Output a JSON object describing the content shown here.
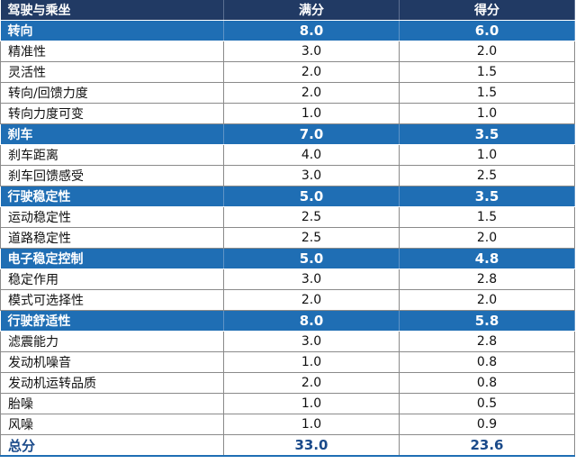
{
  "header": {
    "category": "驾驶与乘坐",
    "full_score": "满分",
    "score": "得分"
  },
  "sections": [
    {
      "name": "转向",
      "full": "8.0",
      "score": "6.0",
      "items": [
        {
          "name": "精准性",
          "full": "3.0",
          "score": "2.0"
        },
        {
          "name": "灵活性",
          "full": "2.0",
          "score": "1.5"
        },
        {
          "name": "转向/回馈力度",
          "full": "2.0",
          "score": "1.5"
        },
        {
          "name": "转向力度可变",
          "full": "1.0",
          "score": "1.0"
        }
      ]
    },
    {
      "name": "刹车",
      "full": "7.0",
      "score": "3.5",
      "items": [
        {
          "name": "刹车距离",
          "full": "4.0",
          "score": "1.0"
        },
        {
          "name": "刹车回馈感受",
          "full": "3.0",
          "score": "2.5"
        }
      ]
    },
    {
      "name": "行驶稳定性",
      "full": "5.0",
      "score": "3.5",
      "items": [
        {
          "name": "运动稳定性",
          "full": "2.5",
          "score": "1.5"
        },
        {
          "name": "道路稳定性",
          "full": "2.5",
          "score": "2.0"
        }
      ]
    },
    {
      "name": "电子稳定控制",
      "full": "5.0",
      "score": "4.8",
      "items": [
        {
          "name": "稳定作用",
          "full": "3.0",
          "score": "2.8"
        },
        {
          "name": "模式可选择性",
          "full": "2.0",
          "score": "2.0"
        }
      ]
    },
    {
      "name": "行驶舒适性",
      "full": "8.0",
      "score": "5.8",
      "items": [
        {
          "name": "滤震能力",
          "full": "3.0",
          "score": "2.8"
        },
        {
          "name": "发动机噪音",
          "full": "1.0",
          "score": "0.8"
        },
        {
          "name": "发动机运转品质",
          "full": "2.0",
          "score": "0.8"
        },
        {
          "name": "胎噪",
          "full": "1.0",
          "score": "0.5"
        },
        {
          "name": "风噪",
          "full": "1.0",
          "score": "0.9"
        }
      ]
    }
  ],
  "total": {
    "name": "总分",
    "full": "33.0",
    "score": "23.6"
  },
  "colors": {
    "header_bg": "#213a64",
    "section_bg": "#1f6eb4",
    "total_text": "#1a4a8a"
  }
}
